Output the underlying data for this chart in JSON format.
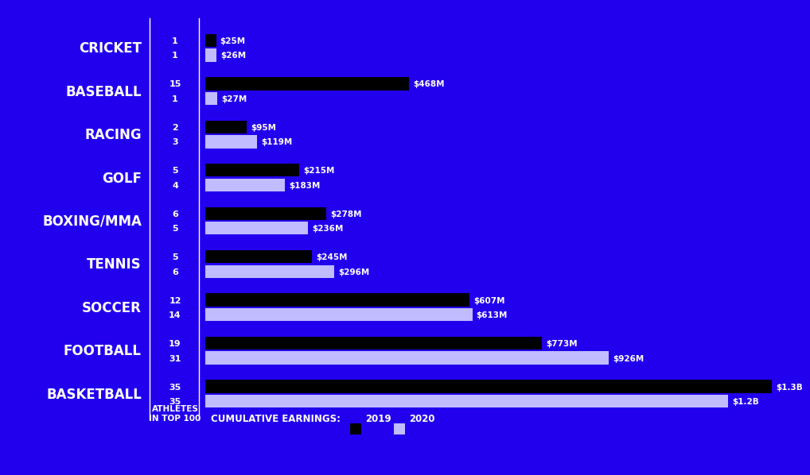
{
  "background_color": "#2200EE",
  "bar_color_2020": "#C0BCFF",
  "bar_color_2019": "#000000",
  "text_color": "#FFFFFF",
  "legend_title": "CUMULATIVE EARNINGS:",
  "legend_2019": "2019",
  "legend_2020": "2020",
  "sports": [
    "BASKETBALL",
    "FOOTBALL",
    "SOCCER",
    "TENNIS",
    "BOXING/MMA",
    "GOLF",
    "RACING",
    "BASEBALL",
    "CRICKET"
  ],
  "athletes_2020": [
    35,
    31,
    14,
    6,
    5,
    4,
    3,
    1,
    1
  ],
  "athletes_2019": [
    35,
    19,
    12,
    5,
    6,
    5,
    2,
    15,
    1
  ],
  "earnings_2020": [
    1200,
    926,
    613,
    296,
    236,
    183,
    119,
    27,
    26
  ],
  "earnings_2019": [
    1300,
    773,
    607,
    245,
    278,
    215,
    95,
    468,
    25
  ],
  "labels_2020": [
    "$1.2B",
    "$926M",
    "$613M",
    "$296M",
    "$236M",
    "$183M",
    "$119M",
    "$27M",
    "$26M"
  ],
  "labels_2019": [
    "$1.3B",
    "$773M",
    "$607M",
    "$245M",
    "$278M",
    "$215M",
    "$95M",
    "$468M",
    "$25M"
  ]
}
